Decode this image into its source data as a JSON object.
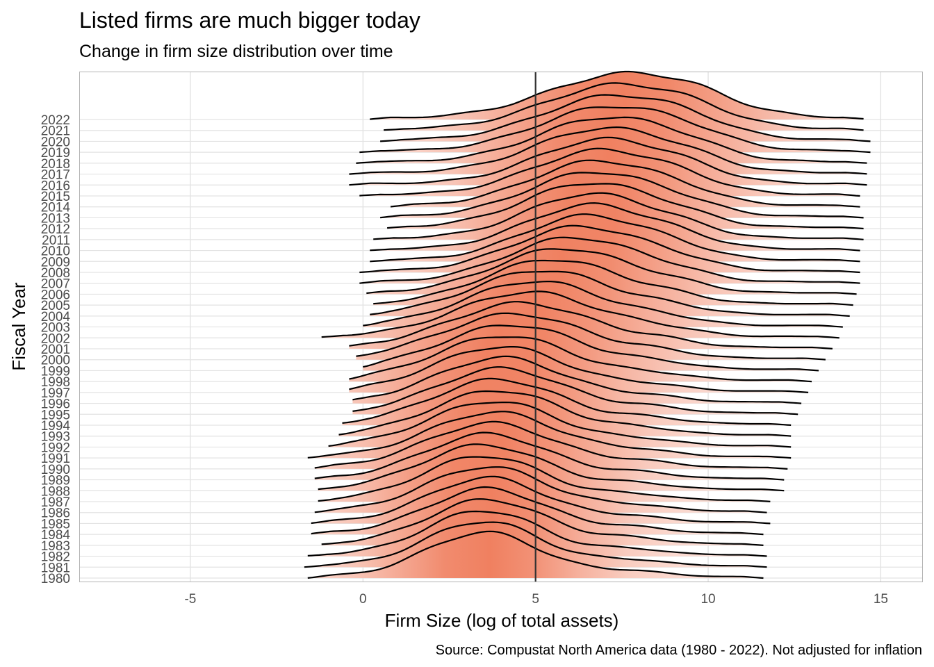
{
  "chart_data": {
    "type": "ridgeline",
    "title": "Listed firms are much bigger today",
    "subtitle": "Change in firm size distribution over time",
    "xlabel": "Firm Size (log of total assets)",
    "ylabel": "Fiscal Year",
    "caption": "Source: Compustat North America data (1980 - 2022). Not adjusted for inflation",
    "xlim": [
      -8.2,
      16.2
    ],
    "x_ticks": [
      -5,
      0,
      5,
      10,
      15
    ],
    "x_tick_labels": [
      "-5",
      "0",
      "5",
      "10",
      "15"
    ],
    "reference_line_x": 5,
    "grid": true,
    "fill_colormap": [
      "#ffffff",
      "#f08060"
    ],
    "line_color": "#000000",
    "years": [
      1980,
      1981,
      1982,
      1983,
      1984,
      1985,
      1986,
      1987,
      1988,
      1989,
      1990,
      1991,
      1992,
      1993,
      1994,
      1995,
      1996,
      1997,
      1998,
      1999,
      2000,
      2001,
      2002,
      2003,
      2004,
      2005,
      2006,
      2007,
      2008,
      2009,
      2010,
      2011,
      2012,
      2013,
      2014,
      2015,
      2016,
      2017,
      2018,
      2019,
      2020,
      2021,
      2022
    ],
    "series_params": [
      {
        "year": 1980,
        "min": -1.6,
        "max": 11.6,
        "mode": 3.5,
        "sd": 1.65,
        "peak2": 7.8
      },
      {
        "year": 1981,
        "min": -1.7,
        "max": 11.7,
        "mode": 3.5,
        "sd": 1.65,
        "peak2": 7.8
      },
      {
        "year": 1982,
        "min": -1.6,
        "max": 11.7,
        "mode": 3.5,
        "sd": 1.65,
        "peak2": 7.8
      },
      {
        "year": 1983,
        "min": -1.2,
        "max": 11.6,
        "mode": 3.6,
        "sd": 1.7,
        "peak2": 7.8
      },
      {
        "year": 1984,
        "min": -1.5,
        "max": 11.6,
        "mode": 3.6,
        "sd": 1.7,
        "peak2": 7.8
      },
      {
        "year": 1985,
        "min": -1.5,
        "max": 11.8,
        "mode": 3.6,
        "sd": 1.7,
        "peak2": 7.8
      },
      {
        "year": 1986,
        "min": -1.4,
        "max": 11.7,
        "mode": 3.6,
        "sd": 1.75,
        "peak2": 7.9
      },
      {
        "year": 1987,
        "min": -1.3,
        "max": 11.8,
        "mode": 3.5,
        "sd": 1.75,
        "peak2": 7.9
      },
      {
        "year": 1988,
        "min": -1.3,
        "max": 12.2,
        "mode": 3.5,
        "sd": 1.8,
        "peak2": 8.0
      },
      {
        "year": 1989,
        "min": -1.4,
        "max": 12.2,
        "mode": 3.6,
        "sd": 1.8,
        "peak2": 8.0
      },
      {
        "year": 1990,
        "min": -1.4,
        "max": 12.3,
        "mode": 3.7,
        "sd": 1.85,
        "peak2": 8.1
      },
      {
        "year": 1991,
        "min": -1.6,
        "max": 12.4,
        "mode": 3.8,
        "sd": 1.85,
        "peak2": 8.1
      },
      {
        "year": 1992,
        "min": -1.0,
        "max": 12.4,
        "mode": 3.8,
        "sd": 1.85,
        "peak2": 8.2
      },
      {
        "year": 1993,
        "min": -0.7,
        "max": 12.4,
        "mode": 3.9,
        "sd": 1.85,
        "peak2": 8.2
      },
      {
        "year": 1994,
        "min": -0.6,
        "max": 12.4,
        "mode": 3.9,
        "sd": 1.85,
        "peak2": 8.3
      },
      {
        "year": 1995,
        "min": -0.3,
        "max": 12.6,
        "mode": 4.0,
        "sd": 1.85,
        "peak2": 8.3
      },
      {
        "year": 1996,
        "min": -0.3,
        "max": 12.7,
        "mode": 4.0,
        "sd": 1.85,
        "peak2": 8.3
      },
      {
        "year": 1997,
        "min": -0.4,
        "max": 12.9,
        "mode": 4.0,
        "sd": 1.9,
        "peak2": 8.4
      },
      {
        "year": 1998,
        "min": -0.4,
        "max": 13.0,
        "mode": 4.1,
        "sd": 1.95,
        "peak2": 8.5
      },
      {
        "year": 1999,
        "min": 0.0,
        "max": 13.2,
        "mode": 4.3,
        "sd": 2.0,
        "peak2": 8.6
      },
      {
        "year": 2000,
        "min": -0.2,
        "max": 13.4,
        "mode": 4.4,
        "sd": 2.05,
        "peak2": 8.6
      },
      {
        "year": 2001,
        "min": -0.4,
        "max": 13.6,
        "mode": 4.6,
        "sd": 2.05,
        "peak2": 8.7
      },
      {
        "year": 2002,
        "min": -1.2,
        "max": 13.8,
        "mode": 4.8,
        "sd": 2.05,
        "peak2": 8.8
      },
      {
        "year": 2003,
        "min": 0.0,
        "max": 13.9,
        "mode": 5.0,
        "sd": 2.0,
        "peak2": 8.9
      },
      {
        "year": 2004,
        "min": 0.2,
        "max": 14.1,
        "mode": 5.2,
        "sd": 2.0,
        "peak2": 9.0
      },
      {
        "year": 2005,
        "min": 0.3,
        "max": 14.2,
        "mode": 5.5,
        "sd": 1.95,
        "peak2": 9.0
      },
      {
        "year": 2006,
        "min": 0.1,
        "max": 14.3,
        "mode": 5.8,
        "sd": 1.95,
        "peak2": 9.1
      },
      {
        "year": 2007,
        "min": -0.1,
        "max": 14.4,
        "mode": 6.1,
        "sd": 1.9,
        "peak2": 9.1
      },
      {
        "year": 2008,
        "min": -0.1,
        "max": 14.4,
        "mode": 6.3,
        "sd": 1.9,
        "peak2": 9.2
      },
      {
        "year": 2009,
        "min": 0.2,
        "max": 14.4,
        "mode": 6.5,
        "sd": 1.85,
        "peak2": 9.2
      },
      {
        "year": 2010,
        "min": 0.2,
        "max": 14.4,
        "mode": 6.6,
        "sd": 1.85,
        "peak2": 9.3
      },
      {
        "year": 2011,
        "min": 0.3,
        "max": 14.5,
        "mode": 6.6,
        "sd": 1.85,
        "peak2": 9.3
      },
      {
        "year": 2012,
        "min": 0.7,
        "max": 14.5,
        "mode": 6.6,
        "sd": 1.9,
        "peak2": 9.3
      },
      {
        "year": 2013,
        "min": 0.5,
        "max": 14.5,
        "mode": 6.7,
        "sd": 1.9,
        "peak2": 9.4
      },
      {
        "year": 2014,
        "min": 0.8,
        "max": 14.4,
        "mode": 6.8,
        "sd": 1.9,
        "peak2": 9.4
      },
      {
        "year": 2015,
        "min": -0.1,
        "max": 14.4,
        "mode": 6.9,
        "sd": 1.95,
        "peak2": 9.4
      },
      {
        "year": 2016,
        "min": -0.4,
        "max": 14.6,
        "mode": 7.0,
        "sd": 1.95,
        "peak2": 9.5
      },
      {
        "year": 2017,
        "min": -0.4,
        "max": 14.6,
        "mode": 7.0,
        "sd": 2.0,
        "peak2": 9.5
      },
      {
        "year": 2018,
        "min": -0.2,
        "max": 14.6,
        "mode": 7.1,
        "sd": 2.0,
        "peak2": 9.5
      },
      {
        "year": 2019,
        "min": -0.1,
        "max": 14.7,
        "mode": 7.2,
        "sd": 2.05,
        "peak2": 9.6
      },
      {
        "year": 2020,
        "min": 0.5,
        "max": 14.7,
        "mode": 7.3,
        "sd": 2.05,
        "peak2": 9.6
      },
      {
        "year": 2021,
        "min": 0.6,
        "max": 14.5,
        "mode": 7.4,
        "sd": 2.1,
        "peak2": 9.7
      },
      {
        "year": 2022,
        "min": 0.2,
        "max": 14.5,
        "mode": 7.6,
        "sd": 2.2,
        "peak2": 9.7
      }
    ]
  }
}
